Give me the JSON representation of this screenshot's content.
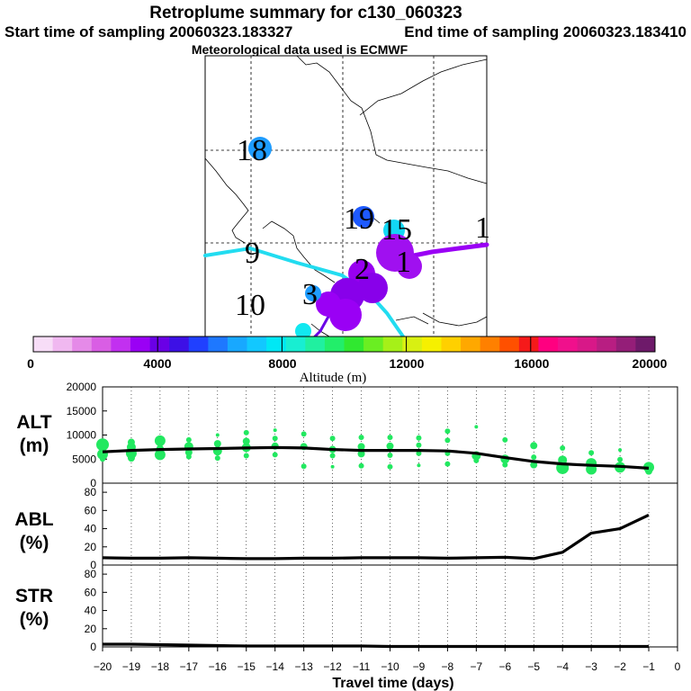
{
  "header": {
    "title": "Retroplume summary for c130_060323",
    "start_label": "Start time of sampling 20060323.183327",
    "end_label": "End time of sampling 20060323.183410",
    "met_label": "Meteorological data used is ECMWF"
  },
  "map": {
    "labels": [
      "18",
      "19",
      "15",
      "1",
      "9",
      "10",
      "3",
      "2",
      "1"
    ]
  },
  "colorbar": {
    "title": "Altitude (m)",
    "min": 0,
    "max": 20000,
    "tick_labels": [
      "0",
      "4000",
      "8000",
      "12000",
      "16000",
      "20000"
    ],
    "colors": [
      "#f7ddf7",
      "#f0b8f0",
      "#e58ae8",
      "#d95ee4",
      "#c230f0",
      "#9a00f5",
      "#6a00e6",
      "#3d10e6",
      "#2040ff",
      "#1e78ff",
      "#18a8ff",
      "#12c8ff",
      "#00e8f5",
      "#18eed2",
      "#20f0a0",
      "#22ee6a",
      "#30e830",
      "#6aee22",
      "#a6f018",
      "#d8f012",
      "#f6f000",
      "#ffd000",
      "#ffa800",
      "#ff8000",
      "#ff5000",
      "#f51a1a",
      "#ff0080",
      "#f0108c",
      "#d81888",
      "#b81e82",
      "#941e78",
      "#6e1a6a"
    ]
  },
  "chart_data": [
    {
      "type": "line",
      "id": "ALT",
      "ylabel": "ALT (m)",
      "ylim": [
        0,
        20000
      ],
      "ytick_labels": [
        "0",
        "5000",
        "10000",
        "15000",
        "20000"
      ],
      "x": [
        -20,
        -19,
        -18,
        -17,
        -16,
        -15,
        -14,
        -13,
        -12,
        -11,
        -10,
        -9,
        -8,
        -7,
        -6,
        -5,
        -4,
        -3,
        -2,
        -1
      ],
      "series": [
        {
          "name": "mean altitude",
          "values": [
            6500,
            6800,
            7000,
            7100,
            7200,
            7300,
            7400,
            7300,
            7000,
            6800,
            6800,
            6800,
            6700,
            6200,
            5300,
            4500,
            4000,
            3700,
            3500,
            3100
          ]
        }
      ],
      "scatter_color": "#22e860",
      "scatter_points": [
        {
          "x": -20,
          "y": 8000,
          "s": 7
        },
        {
          "x": -20,
          "y": 6000,
          "s": 6
        },
        {
          "x": -20,
          "y": 5000,
          "s": 3
        },
        {
          "x": -19,
          "y": 8500,
          "s": 4
        },
        {
          "x": -19,
          "y": 7500,
          "s": 5
        },
        {
          "x": -19,
          "y": 6200,
          "s": 6
        },
        {
          "x": -19,
          "y": 5200,
          "s": 4
        },
        {
          "x": -18,
          "y": 8800,
          "s": 6
        },
        {
          "x": -18,
          "y": 7200,
          "s": 4
        },
        {
          "x": -18,
          "y": 5900,
          "s": 6
        },
        {
          "x": -17,
          "y": 9000,
          "s": 3
        },
        {
          "x": -17,
          "y": 7600,
          "s": 5
        },
        {
          "x": -17,
          "y": 6400,
          "s": 4
        },
        {
          "x": -17,
          "y": 5500,
          "s": 3
        },
        {
          "x": -16,
          "y": 10000,
          "s": 2
        },
        {
          "x": -16,
          "y": 8200,
          "s": 4
        },
        {
          "x": -16,
          "y": 6700,
          "s": 5
        },
        {
          "x": -16,
          "y": 5200,
          "s": 3
        },
        {
          "x": -15,
          "y": 10500,
          "s": 3
        },
        {
          "x": -15,
          "y": 8700,
          "s": 4
        },
        {
          "x": -15,
          "y": 7400,
          "s": 5
        },
        {
          "x": -15,
          "y": 5700,
          "s": 3
        },
        {
          "x": -14,
          "y": 11000,
          "s": 2
        },
        {
          "x": -14,
          "y": 9300,
          "s": 3
        },
        {
          "x": -14,
          "y": 7700,
          "s": 4
        },
        {
          "x": -14,
          "y": 5900,
          "s": 3
        },
        {
          "x": -13,
          "y": 10200,
          "s": 3
        },
        {
          "x": -13,
          "y": 7600,
          "s": 4
        },
        {
          "x": -13,
          "y": 3500,
          "s": 3
        },
        {
          "x": -12,
          "y": 9300,
          "s": 3
        },
        {
          "x": -12,
          "y": 7000,
          "s": 4
        },
        {
          "x": -12,
          "y": 5700,
          "s": 3
        },
        {
          "x": -12,
          "y": 3400,
          "s": 2
        },
        {
          "x": -11,
          "y": 9500,
          "s": 3
        },
        {
          "x": -11,
          "y": 7600,
          "s": 4
        },
        {
          "x": -11,
          "y": 6100,
          "s": 4
        },
        {
          "x": -11,
          "y": 3600,
          "s": 3
        },
        {
          "x": -10,
          "y": 9500,
          "s": 3
        },
        {
          "x": -10,
          "y": 7700,
          "s": 4
        },
        {
          "x": -10,
          "y": 5800,
          "s": 3
        },
        {
          "x": -10,
          "y": 3400,
          "s": 3
        },
        {
          "x": -9,
          "y": 9400,
          "s": 3
        },
        {
          "x": -9,
          "y": 7900,
          "s": 3
        },
        {
          "x": -9,
          "y": 6200,
          "s": 3
        },
        {
          "x": -9,
          "y": 3700,
          "s": 2
        },
        {
          "x": -8,
          "y": 10800,
          "s": 3
        },
        {
          "x": -8,
          "y": 8900,
          "s": 3
        },
        {
          "x": -8,
          "y": 6200,
          "s": 3
        },
        {
          "x": -8,
          "y": 4000,
          "s": 3
        },
        {
          "x": -7,
          "y": 11700,
          "s": 2
        },
        {
          "x": -7,
          "y": 5700,
          "s": 5
        },
        {
          "x": -7,
          "y": 4700,
          "s": 3
        },
        {
          "x": -6,
          "y": 9000,
          "s": 3
        },
        {
          "x": -6,
          "y": 5000,
          "s": 5
        },
        {
          "x": -6,
          "y": 3800,
          "s": 3
        },
        {
          "x": -5,
          "y": 7800,
          "s": 4
        },
        {
          "x": -5,
          "y": 5400,
          "s": 3
        },
        {
          "x": -5,
          "y": 3800,
          "s": 4
        },
        {
          "x": -4,
          "y": 7300,
          "s": 3
        },
        {
          "x": -4,
          "y": 4800,
          "s": 5
        },
        {
          "x": -4,
          "y": 3200,
          "s": 7
        },
        {
          "x": -3,
          "y": 6300,
          "s": 3
        },
        {
          "x": -3,
          "y": 4100,
          "s": 6
        },
        {
          "x": -3,
          "y": 2900,
          "s": 6
        },
        {
          "x": -2,
          "y": 6900,
          "s": 2
        },
        {
          "x": -2,
          "y": 4900,
          "s": 3
        },
        {
          "x": -2,
          "y": 3300,
          "s": 6
        },
        {
          "x": -1,
          "y": 3300,
          "s": 6
        },
        {
          "x": -1,
          "y": 2500,
          "s": 4
        }
      ],
      "xlim": [
        -20,
        0
      ]
    },
    {
      "type": "line",
      "id": "ABL",
      "ylabel": "ABL (%)",
      "ylim": [
        0,
        90
      ],
      "ytick_labels": [
        "0",
        "20",
        "40",
        "60",
        "80"
      ],
      "x": [
        -20,
        -19,
        -18,
        -17,
        -16,
        -15,
        -14,
        -13,
        -12,
        -11,
        -10,
        -9,
        -8,
        -7,
        -6,
        -5,
        -4,
        -3,
        -2,
        -1
      ],
      "series": [
        {
          "name": "ABL fraction",
          "values": [
            8,
            7.5,
            7.5,
            8,
            7.5,
            7,
            7,
            7.5,
            7.5,
            8,
            8,
            8,
            7.5,
            8,
            8.5,
            7,
            14,
            35,
            40,
            55
          ]
        }
      ],
      "xlim": [
        -20,
        0
      ]
    },
    {
      "type": "line",
      "id": "STR",
      "ylabel": "STR (%)",
      "ylim": [
        0,
        90
      ],
      "ytick_labels": [
        "0",
        "20",
        "40",
        "60",
        "80"
      ],
      "x": [
        -20,
        -19,
        -18,
        -17,
        -16,
        -15,
        -14,
        -13,
        -12,
        -11,
        -10,
        -9,
        -8,
        -7,
        -6,
        -5,
        -4,
        -3,
        -2,
        -1
      ],
      "series": [
        {
          "name": "stratosphere fraction",
          "values": [
            3,
            3,
            2.5,
            2,
            1.5,
            1,
            1,
            1,
            1,
            1,
            0.5,
            0.5,
            0.5,
            0.5,
            0.5,
            0.5,
            0.5,
            0.5,
            0.5,
            0.5
          ]
        }
      ],
      "xlim": [
        -20,
        0
      ]
    }
  ],
  "xaxis": {
    "title": "Travel time (days)",
    "tick_labels": [
      "−20",
      "−19",
      "−18",
      "−17",
      "−16",
      "−15",
      "−14",
      "−13",
      "−12",
      "−11",
      "−10",
      "−9",
      "−8",
      "−7",
      "−6",
      "−5",
      "−4",
      "−3",
      "−2",
      "−1",
      "0"
    ]
  }
}
